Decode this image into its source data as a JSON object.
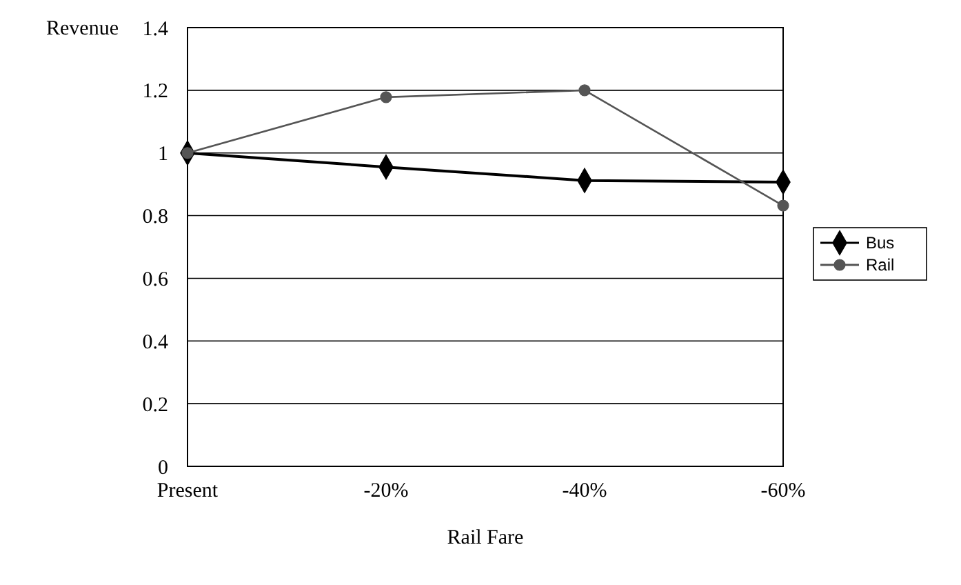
{
  "chart_data": {
    "type": "line",
    "xlabel": "Rail Fare",
    "ylabel": "Revenue",
    "categories": [
      "Present",
      "-20%",
      "-40%",
      "-60%"
    ],
    "series": [
      {
        "name": "Bus",
        "color": "#000000",
        "marker": "diamond",
        "values": [
          1,
          0.955,
          0.912,
          0.907
        ]
      },
      {
        "name": "Rail",
        "color": "#555555",
        "marker": "circle",
        "values": [
          1,
          1.178,
          1.2,
          0.832
        ]
      }
    ],
    "ylim": [
      0,
      1.4
    ],
    "yticks": [
      0,
      0.2,
      0.4,
      0.6,
      0.8,
      1,
      1.2,
      1.4
    ],
    "grid": "y",
    "legend": "right"
  }
}
